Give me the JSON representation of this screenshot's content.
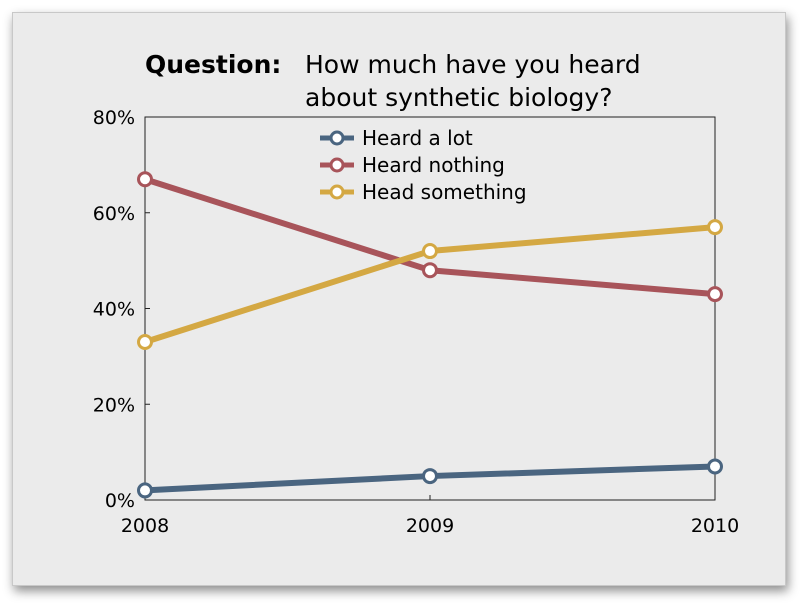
{
  "chart_data": {
    "type": "line",
    "title_bold": "Question:",
    "title_lines": [
      "How much have you heard",
      "about synthetic biology?"
    ],
    "xlabel": "",
    "ylabel": "",
    "categories": [
      "2008",
      "2009",
      "2010"
    ],
    "y_ticks": [
      "0%",
      "20%",
      "40%",
      "60%",
      "80%"
    ],
    "ylim": [
      0,
      80
    ],
    "grid": false,
    "legend_position": "top-center",
    "series": [
      {
        "name": "Heard a lot",
        "values": [
          2,
          5,
          7
        ],
        "color": "#4a6580"
      },
      {
        "name": "Heard nothing",
        "values": [
          67,
          48,
          43
        ],
        "color": "#a8545a"
      },
      {
        "name": "Head something",
        "values": [
          33,
          52,
          57
        ],
        "color": "#d4a843"
      }
    ]
  }
}
